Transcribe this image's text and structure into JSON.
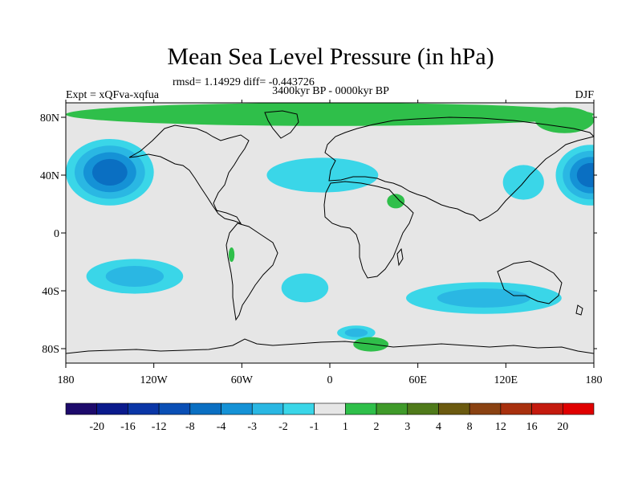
{
  "chart_data": {
    "type": "heatmap",
    "title": "Mean Sea Level Pressure (in hPa)",
    "stats_line": "rmsd= 1.14929 diff= -0.443726",
    "experiment": "Expt = xQFva-xqfua",
    "period": "3400kyr BP - 0000kyr BP",
    "season": "DJF",
    "xlim": [
      -180,
      180
    ],
    "ylim": [
      -90,
      90
    ],
    "x_ticks": [
      {
        "value": -180,
        "label": "180"
      },
      {
        "value": -120,
        "label": "120W"
      },
      {
        "value": -60,
        "label": "60W"
      },
      {
        "value": 0,
        "label": "0"
      },
      {
        "value": 60,
        "label": "60E"
      },
      {
        "value": 120,
        "label": "120E"
      },
      {
        "value": 180,
        "label": "180"
      }
    ],
    "y_ticks": [
      {
        "value": 80,
        "label": "80N"
      },
      {
        "value": 40,
        "label": "40N"
      },
      {
        "value": 0,
        "label": "0"
      },
      {
        "value": -40,
        "label": "40S"
      },
      {
        "value": -80,
        "label": "80S"
      }
    ],
    "colorbar": {
      "colors": [
        "#1d0a6b",
        "#0a1a8c",
        "#0a36a6",
        "#0a4fb5",
        "#0a6fc2",
        "#1592d6",
        "#2ab7e3",
        "#3ad6e8",
        "#e6e6e6",
        "#2fbf4a",
        "#3f9a2a",
        "#4f7a1a",
        "#6b5a10",
        "#8a4212",
        "#a8300e",
        "#c41a0e",
        "#e00000"
      ],
      "labels": [
        "-20",
        "-16",
        "-12",
        "-8",
        "-4",
        "-3",
        "-2",
        "-1",
        "1",
        "2",
        "3",
        "4",
        "8",
        "12",
        "16",
        "20"
      ]
    },
    "anomaly_regions": [
      {
        "name": "north-pacific-low",
        "lon": -150,
        "lat": 42,
        "rlon": 30,
        "rlat": 23,
        "levels": [
          "-1",
          "-2",
          "-3",
          "-4"
        ]
      },
      {
        "name": "west-pacific-edge-low",
        "lon": 178,
        "lat": 40,
        "rlon": 24,
        "rlat": 21,
        "levels": [
          "-1",
          "-2",
          "-3",
          "-4"
        ]
      },
      {
        "name": "north-atlantic-negative",
        "lon": -5,
        "lat": 40,
        "rlon": 38,
        "rlat": 12,
        "levels": [
          "-1"
        ]
      },
      {
        "name": "east-asia-negative",
        "lon": 132,
        "lat": 35,
        "rlon": 14,
        "rlat": 12,
        "levels": [
          "-1"
        ]
      },
      {
        "name": "south-pacific-negative",
        "lon": -133,
        "lat": -30,
        "rlon": 33,
        "rlat": 12,
        "levels": [
          "-1",
          "-2"
        ]
      },
      {
        "name": "south-atlantic-negative",
        "lon": -17,
        "lat": -38,
        "rlon": 16,
        "rlat": 10,
        "levels": [
          "-1"
        ]
      },
      {
        "name": "south-indian-ocean-negative",
        "lon": 105,
        "lat": -45,
        "rlon": 53,
        "rlat": 11,
        "levels": [
          "-1",
          "-2"
        ]
      },
      {
        "name": "antarctic-coast-negative",
        "lon": 18,
        "lat": -69,
        "rlon": 13,
        "rlat": 5,
        "levels": [
          "-1",
          "-2"
        ]
      },
      {
        "name": "arctic-positive",
        "lon": 0,
        "lat": 82,
        "rlon": 180,
        "rlat": 8,
        "levels": [
          "1"
        ]
      },
      {
        "name": "siberia-positive",
        "lon": 160,
        "lat": 78,
        "rlon": 20,
        "rlat": 9,
        "levels": [
          "1"
        ]
      },
      {
        "name": "arabia-positive",
        "lon": 45,
        "lat": 22,
        "rlon": 6,
        "rlat": 5,
        "levels": [
          "1"
        ]
      },
      {
        "name": "amazon-positive",
        "lon": -67,
        "lat": -15,
        "rlon": 2,
        "rlat": 5,
        "levels": [
          "1"
        ]
      },
      {
        "name": "antarctic-positive",
        "lon": 28,
        "lat": -77,
        "rlon": 12,
        "rlat": 5,
        "levels": [
          "1"
        ]
      }
    ]
  }
}
